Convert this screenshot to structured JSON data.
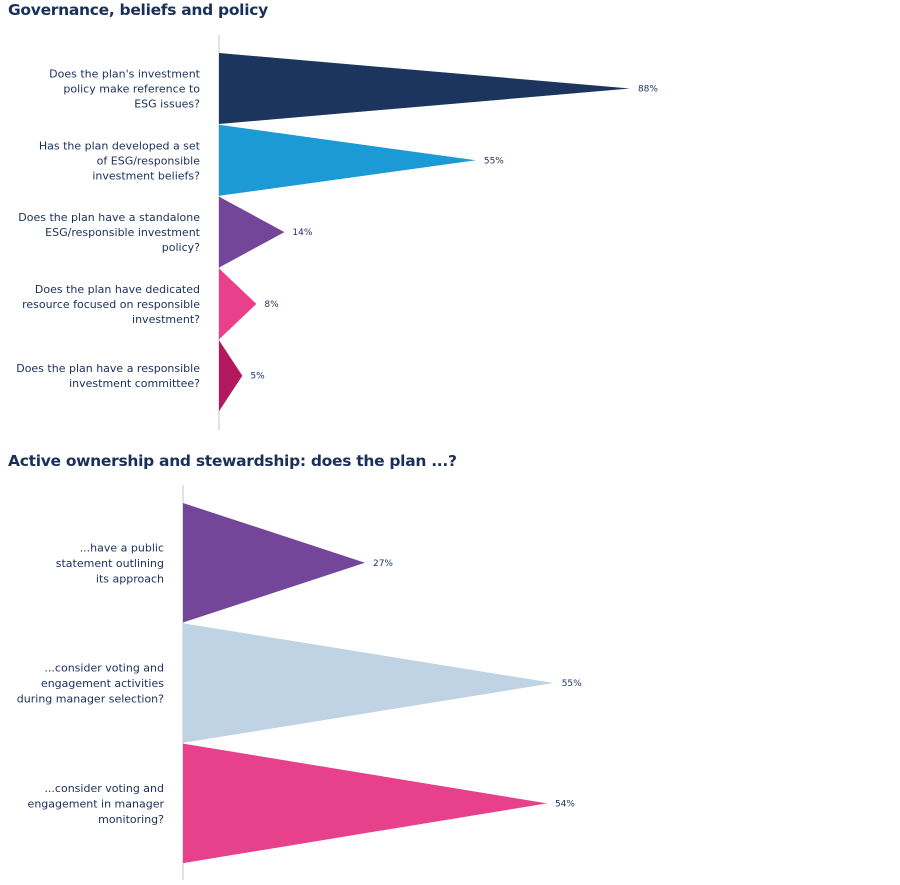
{
  "chart_data": [
    {
      "type": "bar",
      "title": "Governance, beliefs and policy",
      "xlabel": "",
      "ylabel": "",
      "xlim": [
        0,
        100
      ],
      "unit": "%",
      "categories": [
        [
          "Does the plan's investment",
          "policy make reference to",
          "ESG issues?"
        ],
        [
          "Has the plan developed a set",
          "of ESG/responsible",
          "investment beliefs?"
        ],
        [
          "Does the plan have a standalone",
          "ESG/responsible investment",
          "policy?"
        ],
        [
          "Does the plan have dedicated",
          "resource focused on responsible",
          "investment?"
        ],
        [
          "Does the plan have a responsible",
          "investment committee?"
        ]
      ],
      "values": [
        88,
        55,
        14,
        8,
        5
      ],
      "labels": [
        "88%",
        "55%",
        "14%",
        "8%",
        "5%"
      ],
      "colors": [
        "#1b355e",
        "#1b9ad6",
        "#74469a",
        "#e8408a",
        "#b3195e"
      ]
    },
    {
      "type": "bar",
      "title": "Active ownership and stewardship: does the plan ...?",
      "xlabel": "",
      "ylabel": "",
      "xlim": [
        0,
        100
      ],
      "unit": "%",
      "categories": [
        [
          "...have a public",
          "statement outlining",
          "its approach"
        ],
        [
          "...consider voting and",
          "engagement activities",
          "during manager selection?"
        ],
        [
          "...consider voting and",
          "engagement in manager",
          "monitoring?"
        ]
      ],
      "values": [
        27,
        55,
        54
      ],
      "labels": [
        "27%",
        "55%",
        "54%"
      ],
      "colors": [
        "#74469a",
        "#bfd3e5",
        "#e6418a"
      ]
    }
  ]
}
